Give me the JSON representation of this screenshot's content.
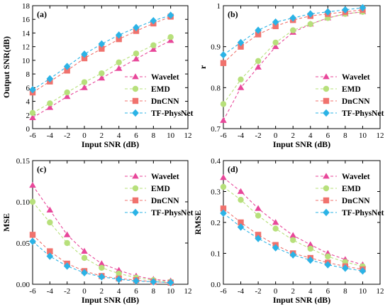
{
  "colors": {
    "Wavelet": "#e8479a",
    "EMD": "#b7e07b",
    "DnCNN": "#f0726d",
    "TF-PhysNet": "#2bb3e6"
  },
  "markers": {
    "Wavelet": "triangle",
    "EMD": "circle",
    "DnCNN": "square",
    "TF-PhysNet": "diamond"
  },
  "chart_data": [
    {
      "panel": "(a)",
      "type": "line",
      "xlabel": "Input SNR (dB)",
      "ylabel": "Output SNR(dB)",
      "xlim": [
        -6,
        12
      ],
      "ylim": [
        0,
        18
      ],
      "xticks": [
        -6,
        -4,
        -2,
        0,
        2,
        4,
        6,
        8,
        10,
        12
      ],
      "yticks": [
        0,
        2,
        4,
        6,
        8,
        10,
        12,
        14,
        16,
        18
      ],
      "x": [
        -6,
        -4,
        -2,
        0,
        2,
        4,
        6,
        8,
        10
      ],
      "legend": "bottom-right",
      "series": [
        {
          "name": "Wavelet",
          "values": [
            1.6,
            3.1,
            4.7,
            6.0,
            7.4,
            8.8,
            10.2,
            11.6,
            12.9
          ]
        },
        {
          "name": "EMD",
          "values": [
            2.3,
            3.7,
            5.3,
            6.8,
            8.1,
            9.7,
            11.0,
            12.2,
            13.4
          ]
        },
        {
          "name": "DnCNN",
          "values": [
            5.3,
            6.9,
            8.5,
            10.3,
            11.7,
            13.1,
            14.3,
            15.4,
            16.4
          ]
        },
        {
          "name": "TF-PhysNet",
          "values": [
            5.7,
            7.3,
            9.1,
            10.9,
            12.4,
            13.7,
            14.8,
            15.8,
            16.6
          ]
        }
      ]
    },
    {
      "panel": "(b)",
      "type": "line",
      "xlabel": "Input SNR (dB)",
      "ylabel": "r",
      "xlim": [
        -6,
        12
      ],
      "ylim": [
        0.7,
        1.0
      ],
      "xticks": [
        -6,
        -4,
        -2,
        0,
        2,
        4,
        6,
        8,
        10,
        12
      ],
      "yticks": [
        0.7,
        0.8,
        0.9,
        1.0
      ],
      "x": [
        -6,
        -4,
        -2,
        0,
        2,
        4,
        6,
        8,
        10
      ],
      "legend": "bottom-right",
      "series": [
        {
          "name": "Wavelet",
          "values": [
            0.72,
            0.8,
            0.85,
            0.9,
            0.935,
            0.955,
            0.97,
            0.98,
            0.985
          ]
        },
        {
          "name": "EMD",
          "values": [
            0.76,
            0.82,
            0.865,
            0.91,
            0.94,
            0.955,
            0.97,
            0.98,
            0.985
          ]
        },
        {
          "name": "DnCNN",
          "values": [
            0.86,
            0.9,
            0.93,
            0.95,
            0.965,
            0.975,
            0.98,
            0.985,
            0.99
          ]
        },
        {
          "name": "TF-PhysNet",
          "values": [
            0.88,
            0.91,
            0.94,
            0.96,
            0.97,
            0.98,
            0.985,
            0.99,
            0.995
          ]
        }
      ]
    },
    {
      "panel": "(c)",
      "type": "line",
      "xlabel": "Input SNR (dB)",
      "ylabel": "MSE",
      "xlim": [
        -6,
        12
      ],
      "ylim": [
        0,
        0.15
      ],
      "xticks": [
        -6,
        -4,
        -2,
        0,
        2,
        4,
        6,
        8,
        10,
        12
      ],
      "yticks": [
        0.0,
        0.05,
        0.1,
        0.15
      ],
      "ytick_labels": [
        "0.00",
        "0.05",
        "0.10",
        "0.15"
      ],
      "x": [
        -6,
        -4,
        -2,
        0,
        2,
        4,
        6,
        8,
        10
      ],
      "legend": "top-right",
      "series": [
        {
          "name": "Wavelet",
          "values": [
            0.12,
            0.09,
            0.06,
            0.04,
            0.025,
            0.017,
            0.01,
            0.006,
            0.004
          ]
        },
        {
          "name": "EMD",
          "values": [
            0.1,
            0.075,
            0.05,
            0.032,
            0.02,
            0.013,
            0.008,
            0.005,
            0.003
          ]
        },
        {
          "name": "DnCNN",
          "values": [
            0.06,
            0.04,
            0.025,
            0.016,
            0.01,
            0.007,
            0.005,
            0.003,
            0.002
          ]
        },
        {
          "name": "TF-PhysNet",
          "values": [
            0.052,
            0.034,
            0.022,
            0.014,
            0.009,
            0.006,
            0.004,
            0.003,
            0.002
          ]
        }
      ]
    },
    {
      "panel": "(d)",
      "type": "line",
      "xlabel": "Input SNR (dB)",
      "ylabel": "RMSE",
      "xlim": [
        -6,
        12
      ],
      "ylim": [
        0,
        0.4
      ],
      "xticks": [
        -6,
        -4,
        -2,
        0,
        2,
        4,
        6,
        8,
        10,
        12
      ],
      "yticks": [
        0.0,
        0.1,
        0.2,
        0.3,
        0.4
      ],
      "ytick_labels": [
        "0.0",
        "0.1",
        "0.2",
        "0.3",
        "0.4"
      ],
      "x": [
        -6,
        -4,
        -2,
        0,
        2,
        4,
        6,
        8,
        10
      ],
      "legend": "top-right",
      "series": [
        {
          "name": "Wavelet",
          "values": [
            0.345,
            0.3,
            0.245,
            0.2,
            0.158,
            0.128,
            0.1,
            0.08,
            0.063
          ]
        },
        {
          "name": "EMD",
          "values": [
            0.315,
            0.273,
            0.222,
            0.18,
            0.143,
            0.115,
            0.09,
            0.072,
            0.058
          ]
        },
        {
          "name": "DnCNN",
          "values": [
            0.245,
            0.2,
            0.16,
            0.127,
            0.1,
            0.085,
            0.07,
            0.058,
            0.048
          ]
        },
        {
          "name": "TF-PhysNet",
          "values": [
            0.23,
            0.185,
            0.148,
            0.118,
            0.095,
            0.078,
            0.063,
            0.052,
            0.043
          ]
        }
      ]
    }
  ]
}
